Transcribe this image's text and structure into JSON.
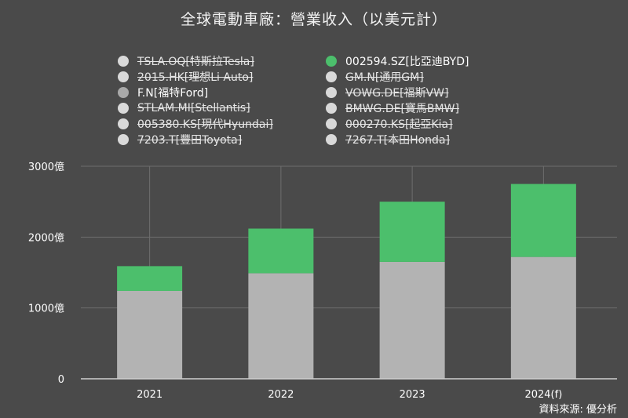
{
  "title": "全球電動車廠：營業收入（以美元計）",
  "source": "資料來源: 優分析",
  "legend": [
    {
      "label": "TSLA.OQ[特斯拉Tesla]",
      "color": "#d9d9d9",
      "hidden": true
    },
    {
      "label": "002594.SZ[比亞迪BYD]",
      "color": "#4cbf6c",
      "hidden": false
    },
    {
      "label": "2015.HK[理想Li Auto]",
      "color": "#d9d9d9",
      "hidden": true
    },
    {
      "label": "GM.N[通用GM]",
      "color": "#d9d9d9",
      "hidden": true
    },
    {
      "label": "F.N[福特Ford]",
      "color": "#a9a9a9",
      "hidden": false
    },
    {
      "label": "VOWG.DE[福斯VW]",
      "color": "#d9d9d9",
      "hidden": true
    },
    {
      "label": "STLAM.MI[Stellantis]",
      "color": "#d9d9d9",
      "hidden": true
    },
    {
      "label": "BMWG.DE[寶馬BMW]",
      "color": "#d9d9d9",
      "hidden": true
    },
    {
      "label": "005380.KS[現代Hyundai]",
      "color": "#d9d9d9",
      "hidden": true
    },
    {
      "label": "000270.KS[起亞Kia]",
      "color": "#d9d9d9",
      "hidden": true
    },
    {
      "label": "7203.T[豐田Toyota]",
      "color": "#d9d9d9",
      "hidden": true
    },
    {
      "label": "7267.T[本田Honda]",
      "color": "#d9d9d9",
      "hidden": true
    }
  ],
  "chart_data": {
    "type": "bar",
    "stacked": true,
    "categories": [
      "2021",
      "2022",
      "2023",
      "2024(f)"
    ],
    "series": [
      {
        "name": "F.N[福特Ford]",
        "color": "#b3b3b3",
        "values": [
          1240,
          1490,
          1650,
          1720
        ]
      },
      {
        "name": "002594.SZ[比亞迪BYD]",
        "color": "#4cbf6c",
        "values": [
          350,
          630,
          850,
          1030
        ]
      }
    ],
    "yticks": [
      {
        "value": 0,
        "label": "0"
      },
      {
        "value": 1000,
        "label": "1000億"
      },
      {
        "value": 2000,
        "label": "2000億"
      },
      {
        "value": 3000,
        "label": "3000億"
      }
    ],
    "ylim": [
      0,
      3000
    ],
    "grid": true,
    "legend_position": "top"
  }
}
